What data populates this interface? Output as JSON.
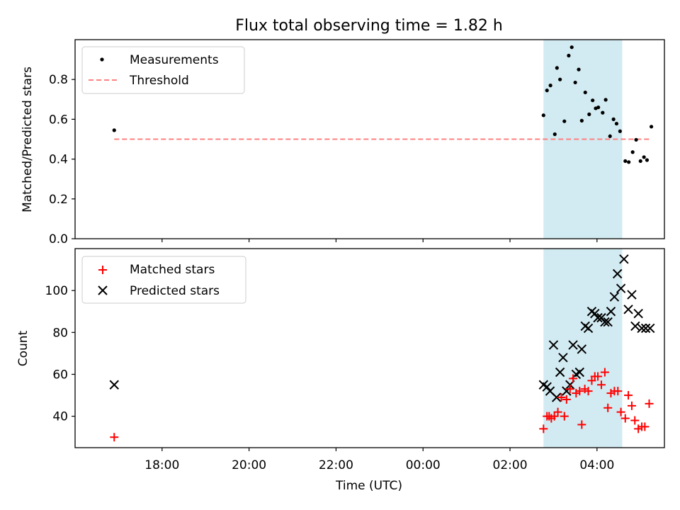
{
  "chart_data": [
    {
      "type": "scatter",
      "title": "Flux total observing time = 1.82 h",
      "xlabel": "",
      "ylabel": "Matched/Predicted stars",
      "ylim": [
        0,
        1.0
      ],
      "yticks": [
        "0.0",
        "0.2",
        "0.4",
        "0.6",
        "0.8"
      ],
      "ytick_values": [
        0,
        0.2,
        0.4,
        0.6,
        0.8
      ],
      "grid": false,
      "legend_position": "top-left",
      "highlight_band_hours": [
        2.77,
        4.58
      ],
      "highlight_color": "#add8e6",
      "series": [
        {
          "name": "Measurements",
          "marker": "dot",
          "color": "#000000",
          "x": [
            16.9,
            2.77,
            2.85,
            2.93,
            3.03,
            3.08,
            3.15,
            3.25,
            3.35,
            3.42,
            3.5,
            3.58,
            3.65,
            3.73,
            3.82,
            3.9,
            3.97,
            4.03,
            4.13,
            4.2,
            4.3,
            4.38,
            4.45,
            4.53,
            4.65,
            4.73,
            4.82,
            4.9,
            5.0,
            5.08,
            5.15,
            5.25
          ],
          "y": [
            0.545,
            0.62,
            0.745,
            0.77,
            0.525,
            0.858,
            0.8,
            0.59,
            0.92,
            0.962,
            0.785,
            0.85,
            0.593,
            0.735,
            0.625,
            0.695,
            0.655,
            0.66,
            0.633,
            0.698,
            0.515,
            0.6,
            0.578,
            0.54,
            0.39,
            0.385,
            0.435,
            0.497,
            0.39,
            0.41,
            0.395,
            0.563
          ]
        },
        {
          "name": "Threshold",
          "marker": "dashed-line",
          "color": "#ff8080",
          "x": [
            16.9,
            5.25
          ],
          "y": [
            0.5,
            0.5
          ]
        }
      ]
    },
    {
      "type": "scatter",
      "title": "",
      "xlabel": "Time (UTC)",
      "ylabel": "Count",
      "ylim": [
        25,
        120
      ],
      "yticks": [
        "40",
        "60",
        "80",
        "100"
      ],
      "ytick_values": [
        40,
        60,
        80,
        100
      ],
      "xticks": [
        "18:00",
        "20:00",
        "22:00",
        "00:00",
        "02:00",
        "04:00"
      ],
      "xtick_hours": [
        18,
        20,
        22,
        24,
        26,
        28
      ],
      "xlim_hours": [
        16.0,
        29.55
      ],
      "grid": false,
      "legend_position": "top-left",
      "highlight_band_hours": [
        2.77,
        4.58
      ],
      "highlight_color": "#add8e6",
      "series": [
        {
          "name": "Matched stars",
          "marker": "plus",
          "color": "#ff0000",
          "x": [
            16.9,
            2.77,
            2.85,
            2.9,
            2.95,
            3.02,
            3.1,
            3.18,
            3.25,
            3.3,
            3.38,
            3.45,
            3.52,
            3.6,
            3.65,
            3.72,
            3.8,
            3.88,
            3.95,
            4.02,
            4.1,
            4.18,
            4.25,
            4.32,
            4.4,
            4.48,
            4.55,
            4.65,
            4.72,
            4.8,
            4.87,
            4.95,
            5.03,
            5.1,
            5.2
          ],
          "y": [
            30,
            34,
            40,
            40,
            39,
            40,
            42,
            49,
            40,
            48,
            53,
            58,
            51,
            52,
            36,
            53,
            52,
            57,
            59,
            59,
            55,
            61,
            44,
            51,
            52,
            52,
            42,
            39,
            50,
            45,
            38,
            34,
            35,
            35,
            46
          ]
        },
        {
          "name": "Predicted stars",
          "marker": "x",
          "color": "#000000",
          "x": [
            16.9,
            2.77,
            2.85,
            2.92,
            3.0,
            3.07,
            3.15,
            3.22,
            3.3,
            3.38,
            3.45,
            3.52,
            3.6,
            3.65,
            3.73,
            3.8,
            3.88,
            3.95,
            4.02,
            4.1,
            4.18,
            4.25,
            4.32,
            4.4,
            4.47,
            4.55,
            4.62,
            4.72,
            4.8,
            4.88,
            4.95,
            5.03,
            5.12,
            5.22
          ],
          "y": [
            55,
            55,
            54,
            52,
            74,
            49,
            61,
            68,
            52,
            55,
            74,
            60,
            61,
            72,
            83,
            82,
            90,
            89,
            87,
            87,
            85,
            85,
            90,
            97,
            108,
            101,
            115,
            91,
            98,
            83,
            89,
            82,
            82,
            82
          ]
        }
      ]
    }
  ]
}
